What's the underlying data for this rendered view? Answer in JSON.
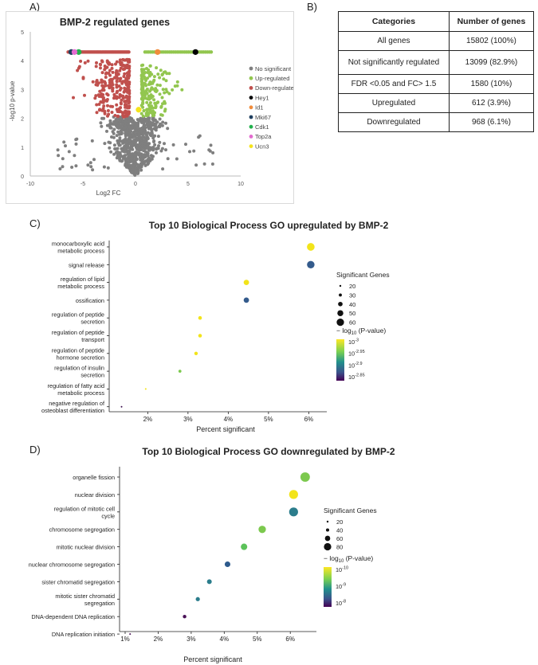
{
  "panel_letters": {
    "a": "A)",
    "b": "B)",
    "c": "C)",
    "d": "D)"
  },
  "colors": {
    "ns": "#7f7f7f",
    "up": "#92c64f",
    "down": "#c0504d",
    "hey1": "#000000",
    "id1": "#f08c3c",
    "mki67": "#1f3f5f",
    "cdk1": "#22b14c",
    "top2a": "#e36bd0",
    "ucn3": "#f5e31c"
  },
  "chart_data": [
    {
      "type": "scatter",
      "title": "BMP-2 regulated genes",
      "xlabel": "Log2  FC",
      "ylabel": "-log10 p-value",
      "xlim": [
        -10,
        10
      ],
      "ylim": [
        0,
        5
      ],
      "x_ticks": [
        "-10",
        "-5",
        "0",
        "5",
        "10"
      ],
      "y_ticks": [
        "0",
        "1",
        "2",
        "3",
        "4",
        "5"
      ],
      "legend": [
        {
          "label": "No significant",
          "key": "ns"
        },
        {
          "label": "Up-regulated",
          "key": "up"
        },
        {
          "label": "Down-regulated",
          "key": "down"
        },
        {
          "label": "Hey1",
          "key": "hey1"
        },
        {
          "label": "Id1",
          "key": "id1"
        },
        {
          "label": "Mki67",
          "key": "mki67"
        },
        {
          "label": "Cdk1",
          "key": "cdk1"
        },
        {
          "label": "Top2a",
          "key": "top2a"
        },
        {
          "label": "Ucn3",
          "key": "ucn3"
        }
      ],
      "highlighted_genes": [
        {
          "gene": "Hey1",
          "x": 5.7,
          "y": 4.3
        },
        {
          "gene": "Id1",
          "x": 2.1,
          "y": 4.3
        },
        {
          "gene": "Mki67",
          "x": -6.1,
          "y": 4.3
        },
        {
          "gene": "Cdk1",
          "x": -5.4,
          "y": 4.3
        },
        {
          "gene": "Top2a",
          "x": -5.8,
          "y": 4.3
        },
        {
          "gene": "Ucn3",
          "x": 0.3,
          "y": 2.3
        }
      ],
      "cap_y": 4.3,
      "threshold_log2fc": 0.58,
      "threshold_y": 2.0
    },
    {
      "type": "table",
      "headers": [
        "Categories",
        "Number of genes"
      ],
      "rows": [
        [
          "All genes",
          "15802 (100%)"
        ],
        [
          "Not significantly regulated",
          "13099 (82.9%)"
        ],
        [
          "FDR <0.05 and FC> 1.5",
          "1580 (10%)"
        ],
        [
          "Upregulated",
          "612 (3.9%)"
        ],
        [
          "Downregulated",
          "968 (6.1%)"
        ]
      ]
    },
    {
      "type": "scatter",
      "title": "Top 10 Biological Process GO upregulated  by BMP-2",
      "xlabel": "Percent significant",
      "x_ticks": [
        2,
        3,
        4,
        5,
        6
      ],
      "x_tick_labels": [
        "2%",
        "3%",
        "4%",
        "5%",
        "6%"
      ],
      "xlim": [
        1.3,
        6.25
      ],
      "terms": [
        {
          "label": [
            "monocarboxylic acid",
            "metabolic process"
          ],
          "pct": 6.05,
          "genes": 62,
          "color": "#f2e41a"
        },
        {
          "label": [
            "signal release"
          ],
          "pct": 6.05,
          "genes": 61,
          "color": "#345b8c"
        },
        {
          "label": [
            "regulation of lipid",
            "metabolic process"
          ],
          "pct": 4.45,
          "genes": 46,
          "color": "#f2e41a"
        },
        {
          "label": [
            "ossification"
          ],
          "pct": 4.45,
          "genes": 46,
          "color": "#345b8c"
        },
        {
          "label": [
            "regulation of peptide",
            "secretion"
          ],
          "pct": 3.3,
          "genes": 34,
          "color": "#f2e41a"
        },
        {
          "label": [
            "regulation of peptide",
            "transport"
          ],
          "pct": 3.3,
          "genes": 34,
          "color": "#f2e41a"
        },
        {
          "label": [
            "regulation of peptide",
            "hormone secretion"
          ],
          "pct": 3.2,
          "genes": 33,
          "color": "#f2e41a"
        },
        {
          "label": [
            "regulation of insulin",
            "secretion"
          ],
          "pct": 2.8,
          "genes": 29,
          "color": "#7cc94e"
        },
        {
          "label": [
            "regulation of fatty acid",
            "metabolic process"
          ],
          "pct": 1.95,
          "genes": 20,
          "color": "#f2e41a"
        },
        {
          "label": [
            "negative regulation of",
            "osteoblast differentiation"
          ],
          "pct": 1.35,
          "genes": 14,
          "color": "#3b0f4f"
        }
      ],
      "size_legend_title": "Significant Genes",
      "size_legend": [
        20,
        30,
        40,
        50,
        60
      ],
      "color_legend_title": "− log",
      "color_legend_sub": "10",
      "color_legend_tail": " (P-value)",
      "color_legend_ticks": [
        {
          "base": "10",
          "exp": "-3"
        },
        {
          "base": "10",
          "exp": "-2.95"
        },
        {
          "base": "10",
          "exp": "-2.9"
        },
        {
          "base": "10",
          "exp": "-2.85"
        }
      ]
    },
    {
      "type": "scatter",
      "title": "Top 10 Biological Process GO downregulated  by BMP-2",
      "xlabel": "Percent significant",
      "x_ticks": [
        1,
        2,
        3,
        4,
        5,
        6
      ],
      "x_tick_labels": [
        "1%",
        "2%",
        "3%",
        "4%",
        "5%",
        "6%"
      ],
      "xlim": [
        1.0,
        6.55
      ],
      "terms": [
        {
          "label": [
            "organelle fission"
          ],
          "pct": 6.45,
          "genes": 100,
          "color": "#7cc94e"
        },
        {
          "label": [
            "nuclear division"
          ],
          "pct": 6.1,
          "genes": 95,
          "color": "#f2e41a"
        },
        {
          "label": [
            "regulation of mitotic cell",
            "cycle"
          ],
          "pct": 6.1,
          "genes": 95,
          "color": "#2b7d8c"
        },
        {
          "label": [
            "chromosome segregation"
          ],
          "pct": 5.15,
          "genes": 80,
          "color": "#7cc94e"
        },
        {
          "label": [
            "mitotic nuclear division"
          ],
          "pct": 4.6,
          "genes": 71,
          "color": "#5cc25a"
        },
        {
          "label": [
            "nuclear chromosome segregation"
          ],
          "pct": 4.1,
          "genes": 63,
          "color": "#2d5a8c"
        },
        {
          "label": [
            "sister chromatid segregation"
          ],
          "pct": 3.55,
          "genes": 55,
          "color": "#2b7d8c"
        },
        {
          "label": [
            "mitotic sister chromatid",
            "segregation"
          ],
          "pct": 3.2,
          "genes": 49,
          "color": "#2b7d8c"
        },
        {
          "label": [
            "DNA-dependent DNA replication"
          ],
          "pct": 2.8,
          "genes": 43,
          "color": "#4b1358"
        },
        {
          "label": [
            "DNA replication initiation"
          ],
          "pct": 1.15,
          "genes": 18,
          "color": "#4b1358"
        }
      ],
      "size_legend_title": "Significant Genes",
      "size_legend": [
        20,
        40,
        60,
        80
      ],
      "color_legend_title": "− log",
      "color_legend_sub": "10",
      "color_legend_tail": " (P-value)",
      "color_legend_ticks": [
        {
          "base": "10",
          "exp": "-10"
        },
        {
          "base": "10",
          "exp": "-9"
        },
        {
          "base": "10",
          "exp": "-8"
        }
      ]
    }
  ]
}
